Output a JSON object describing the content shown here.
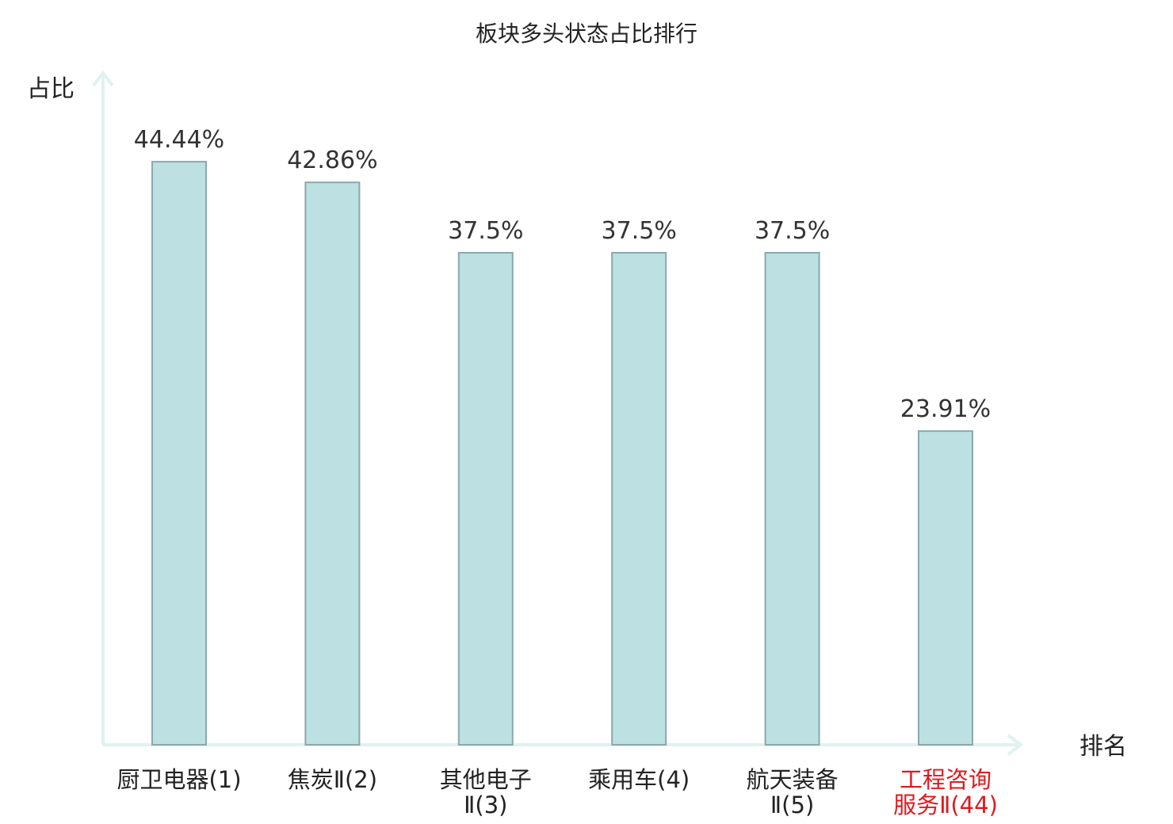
{
  "chart_data": {
    "type": "bar",
    "title": "板块多头状态占比排行",
    "ylabel": "占比",
    "xlabel": "排名",
    "ylim": [
      0,
      50
    ],
    "grid": false,
    "categories": [
      "厨卫电器(1)",
      "焦炭Ⅱ(2)",
      "其他电子Ⅱ(3)",
      "乘用车(4)",
      "航天装备Ⅱ(5)",
      "工程咨询服务Ⅱ(44)"
    ],
    "category_lines": [
      [
        "厨卫电器(1)"
      ],
      [
        "焦炭Ⅱ(2)"
      ],
      [
        "其他电子",
        "Ⅱ(3)"
      ],
      [
        "乘用车(4)"
      ],
      [
        "航天装备",
        "Ⅱ(5)"
      ],
      [
        "工程咨询",
        "服务Ⅱ(44)"
      ]
    ],
    "values": [
      44.44,
      42.86,
      37.5,
      37.5,
      37.5,
      23.91
    ],
    "value_labels": [
      "44.44%",
      "42.86%",
      "37.5%",
      "37.5%",
      "37.5%",
      "23.91%"
    ],
    "highlight_index": 5,
    "colors": {
      "bar_fill": "#bde0e3",
      "bar_stroke": "#8aa9ab",
      "axis": "#dff2ef",
      "highlight_label": "#e0191d",
      "text": "#222222"
    }
  }
}
